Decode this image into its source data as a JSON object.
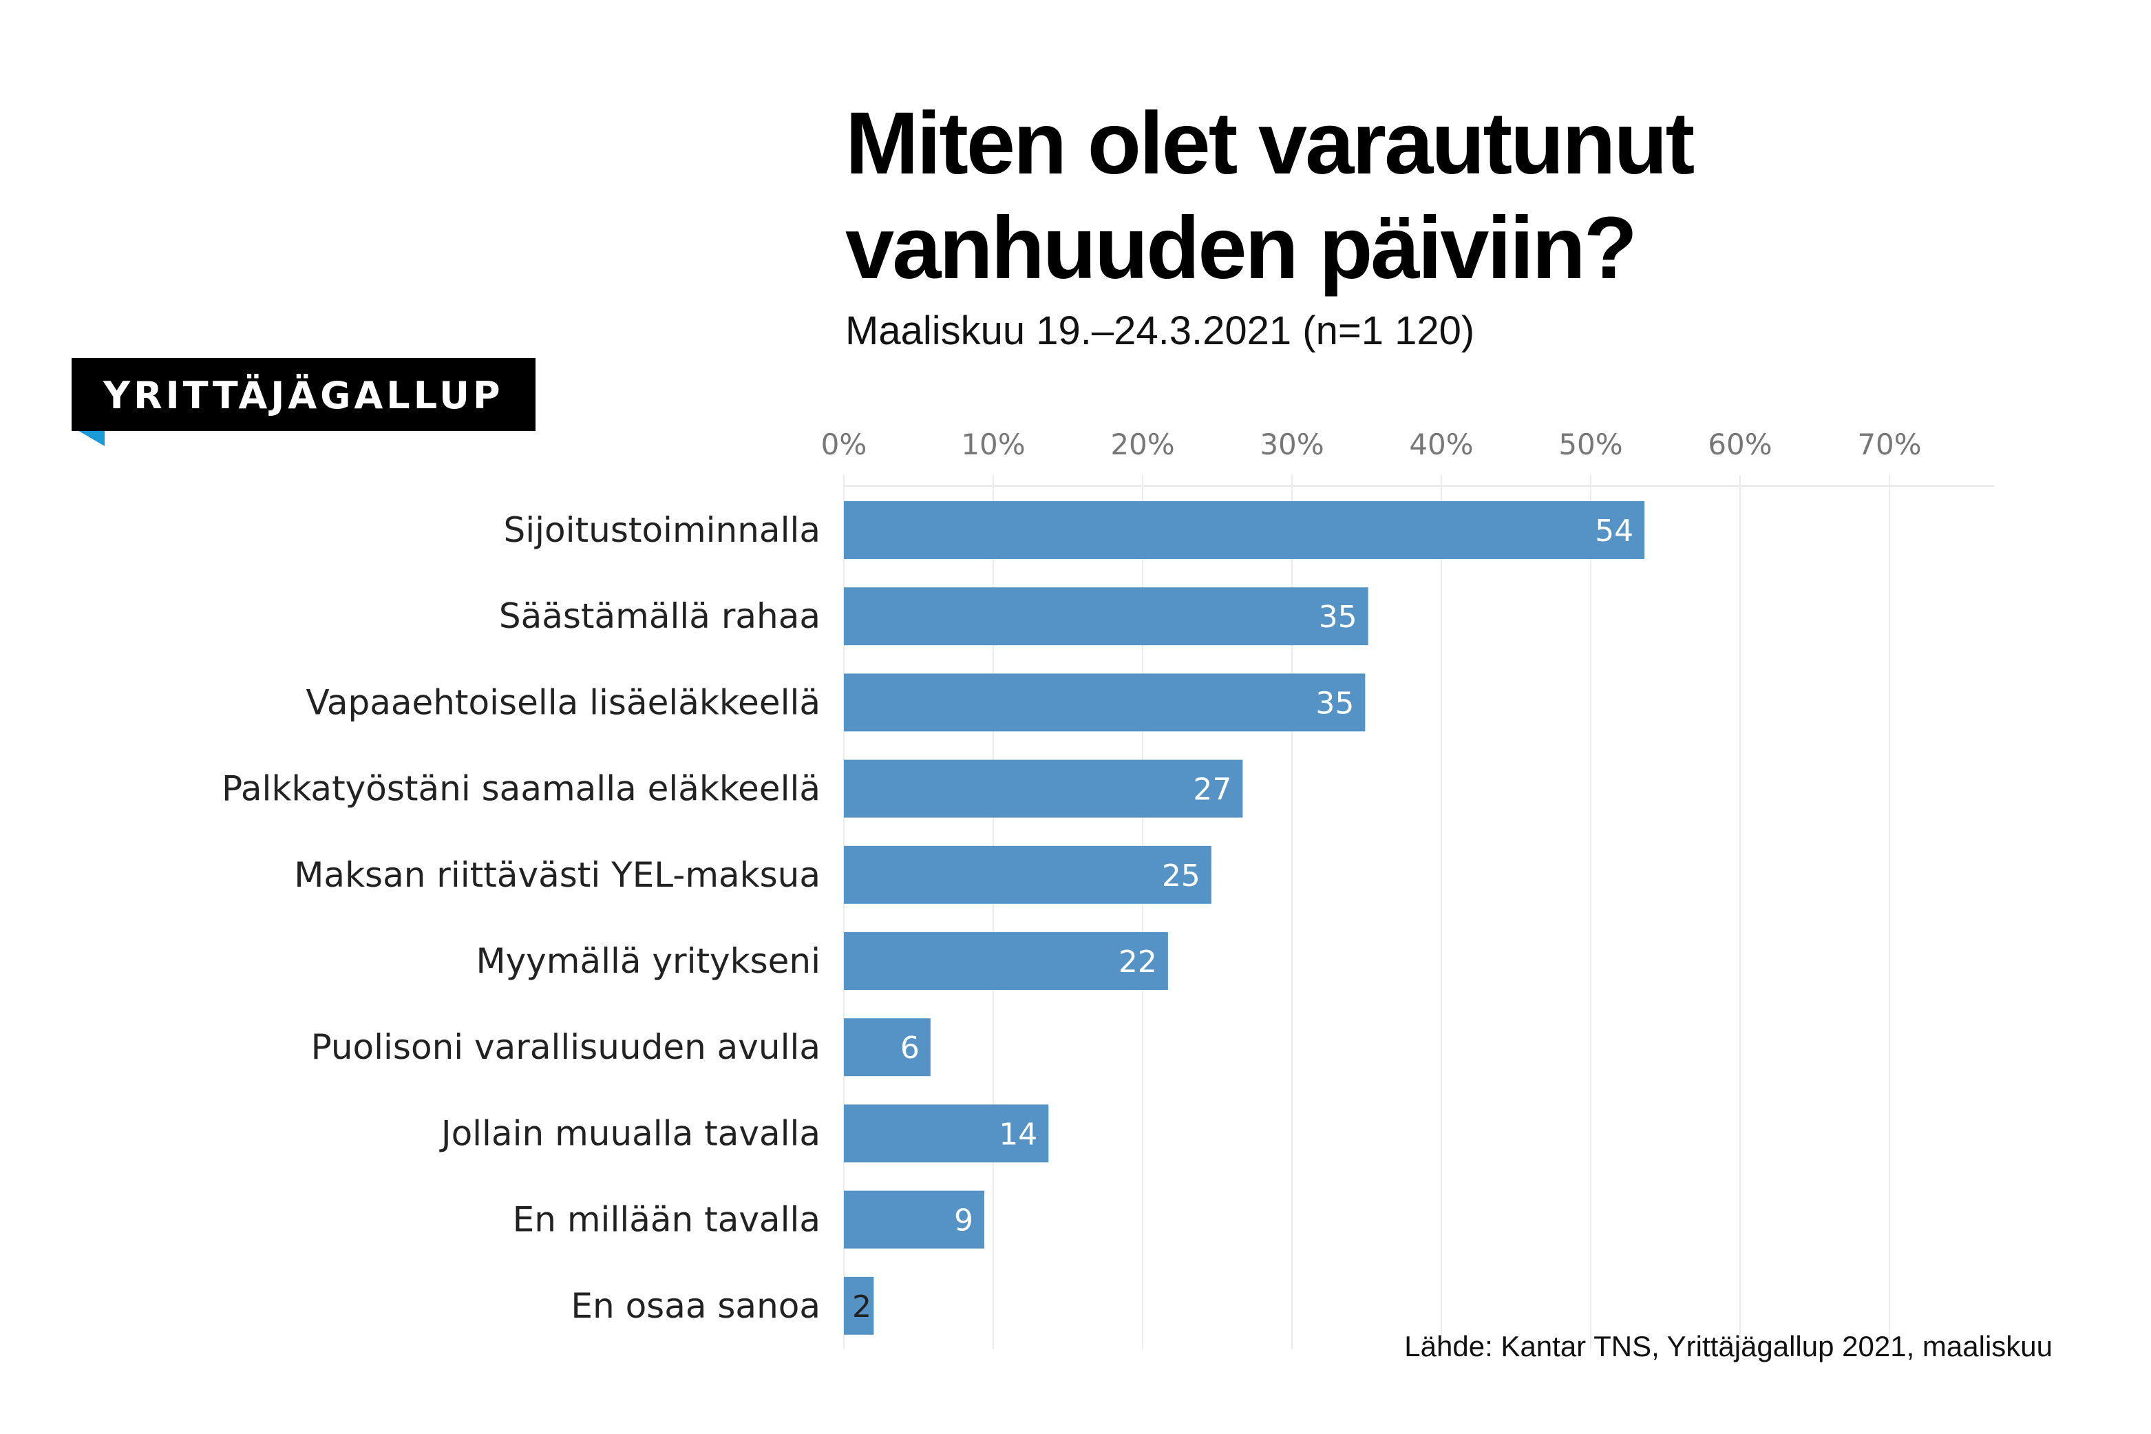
{
  "badge": {
    "label": "YRITTÄJÄGALLUP"
  },
  "chart_data": {
    "type": "bar",
    "orientation": "horizontal",
    "title": "Miten olet varautunut vanhuuden päiviin?",
    "title_lines": [
      "Miten olet varautunut",
      "vanhuuden päiviin?"
    ],
    "subtitle": "Maaliskuu 19.–24.3.2021 (n=1 120)",
    "categories": [
      "Sijoitustoiminnalla",
      "Säästämällä rahaa",
      "Vapaaehtoisella lisäeläkkeellä",
      "Palkkatyöstäni saamalla eläkkeellä",
      "Maksan riittävästi YEL-maksua",
      "Myymällä yritykseni",
      "Puolisoni varallisuuden avulla",
      "Jollain muualla tavalla",
      "En millään tavalla",
      "En osaa sanoa"
    ],
    "values": [
      53.6,
      35.1,
      34.9,
      26.7,
      24.6,
      21.7,
      5.8,
      13.7,
      9.4,
      2
    ],
    "data_labels": [
      "54",
      "35",
      "35",
      "27",
      "25",
      "22",
      "6",
      "14",
      "9",
      "2"
    ],
    "xlim": [
      0,
      77
    ],
    "xticks": [
      0,
      10,
      20,
      30,
      40,
      50,
      60,
      70
    ],
    "xtick_labels": [
      "0%",
      "10%",
      "20%",
      "30%",
      "40%",
      "50%",
      "60%",
      "70%"
    ],
    "x_axis_position": "top",
    "grid": true,
    "legend": "none",
    "bar_color": "#5593c6",
    "source": "Lähde: Kantar TNS, Yrittäjägallup 2021, maaliskuu"
  },
  "colors": {
    "bar": "#5593c6",
    "badge_bg": "#000000",
    "badge_accent": "#1a9ad6",
    "grid": "#ececec"
  }
}
